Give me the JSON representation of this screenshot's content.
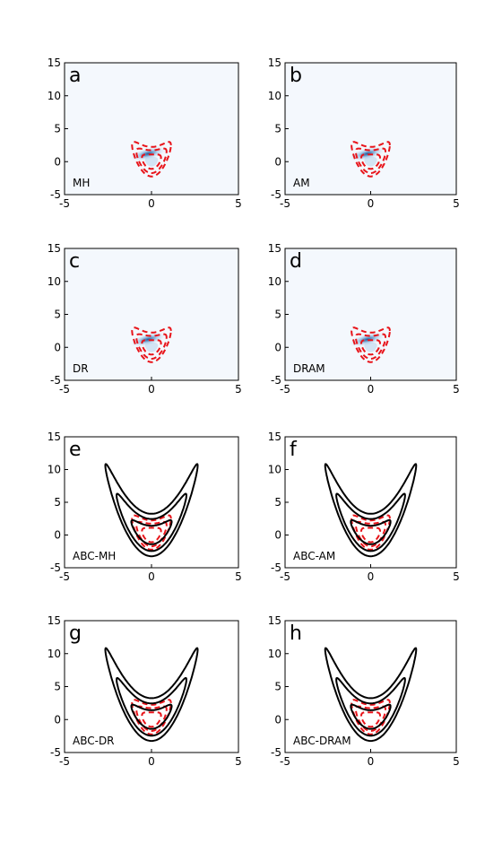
{
  "figure": {
    "background": "#ffffff"
  },
  "style": {
    "axis_color": "#000000",
    "posterior_color": "#e8141a",
    "contour_color": "#000000",
    "density_bg": "#f4f8fd",
    "density_mid": "#a9cbe9",
    "density_high": "#1f5f9f"
  },
  "chart_data": [
    {
      "type": "heatmap",
      "panel_letter": "a",
      "method_label": "MH",
      "xlim": [
        -5,
        5
      ],
      "ylim": [
        -5,
        15
      ],
      "xticks": [
        "-5",
        "0",
        "5"
      ],
      "yticks": [
        "-5",
        "0",
        "5",
        "10",
        "15"
      ],
      "target_contours_dashed": [
        [
          0.5,
          2,
          1.2
        ],
        [
          0.5,
          2,
          3.0
        ],
        [
          0.5,
          2,
          5.0
        ]
      ],
      "sample_density_peak": [
        -0.2,
        1.2
      ]
    },
    {
      "type": "heatmap",
      "panel_letter": "b",
      "method_label": "AM",
      "xlim": [
        -5,
        5
      ],
      "ylim": [
        -5,
        15
      ],
      "xticks": [
        "-5",
        "0",
        "5"
      ],
      "yticks": [
        "-5",
        "0",
        "5",
        "10",
        "15"
      ],
      "target_contours_dashed": [
        [
          0.5,
          2,
          1.2
        ],
        [
          0.5,
          2,
          3.0
        ],
        [
          0.5,
          2,
          5.0
        ]
      ],
      "sample_density_peak": [
        -0.2,
        1.2
      ]
    },
    {
      "type": "heatmap",
      "panel_letter": "c",
      "method_label": "DR",
      "xlim": [
        -5,
        5
      ],
      "ylim": [
        -5,
        15
      ],
      "xticks": [
        "-5",
        "0",
        "5"
      ],
      "yticks": [
        "-5",
        "0",
        "5",
        "10",
        "15"
      ],
      "target_contours_dashed": [
        [
          0.5,
          2,
          1.2
        ],
        [
          0.5,
          2,
          3.0
        ],
        [
          0.5,
          2,
          5.0
        ]
      ],
      "sample_density_peak": [
        -0.2,
        1.2
      ]
    },
    {
      "type": "heatmap",
      "panel_letter": "d",
      "method_label": "DRAM",
      "xlim": [
        -5,
        5
      ],
      "ylim": [
        -5,
        15
      ],
      "xticks": [
        "-5",
        "0",
        "5"
      ],
      "yticks": [
        "-5",
        "0",
        "5",
        "10",
        "15"
      ],
      "target_contours_dashed": [
        [
          0.5,
          2,
          1.2
        ],
        [
          0.5,
          2,
          3.0
        ],
        [
          0.5,
          2,
          5.0
        ]
      ],
      "sample_density_peak": [
        -0.2,
        1.2
      ]
    },
    {
      "type": "line",
      "panel_letter": "e",
      "method_label": "ABC-MH",
      "xlim": [
        -5,
        5
      ],
      "ylim": [
        -5,
        15
      ],
      "xticks": [
        "-5",
        "0",
        "5"
      ],
      "yticks": [
        "-5",
        "0",
        "5",
        "10",
        "15"
      ],
      "target_contours_dashed": [
        [
          0.5,
          2,
          1.2
        ],
        [
          0.5,
          2,
          3.0
        ],
        [
          0.5,
          2,
          5.0
        ]
      ],
      "abc_contours_solid": [
        [
          0.82,
          1.5,
          2.0
        ],
        [
          0.82,
          1.5,
          6.0
        ],
        [
          0.82,
          1.5,
          10.5
        ]
      ]
    },
    {
      "type": "line",
      "panel_letter": "f",
      "method_label": "ABC-AM",
      "xlim": [
        -5,
        5
      ],
      "ylim": [
        -5,
        15
      ],
      "xticks": [
        "-5",
        "0",
        "5"
      ],
      "yticks": [
        "-5",
        "0",
        "5",
        "10",
        "15"
      ],
      "target_contours_dashed": [
        [
          0.5,
          2,
          1.2
        ],
        [
          0.5,
          2,
          3.0
        ],
        [
          0.5,
          2,
          5.0
        ]
      ],
      "abc_contours_solid": [
        [
          0.82,
          1.5,
          2.0
        ],
        [
          0.82,
          1.5,
          6.0
        ],
        [
          0.82,
          1.5,
          10.5
        ]
      ]
    },
    {
      "type": "line",
      "panel_letter": "g",
      "method_label": "ABC-DR",
      "xlim": [
        -5,
        5
      ],
      "ylim": [
        -5,
        15
      ],
      "xticks": [
        "-5",
        "0",
        "5"
      ],
      "yticks": [
        "-5",
        "0",
        "5",
        "10",
        "15"
      ],
      "target_contours_dashed": [
        [
          0.5,
          2,
          1.2
        ],
        [
          0.5,
          2,
          3.0
        ],
        [
          0.5,
          2,
          5.0
        ]
      ],
      "abc_contours_solid": [
        [
          0.82,
          1.5,
          2.0
        ],
        [
          0.82,
          1.5,
          6.0
        ],
        [
          0.82,
          1.5,
          10.5
        ]
      ]
    },
    {
      "type": "line",
      "panel_letter": "h",
      "method_label": "ABC-DRAM",
      "xlim": [
        -5,
        5
      ],
      "ylim": [
        -5,
        15
      ],
      "xticks": [
        "-5",
        "0",
        "5"
      ],
      "yticks": [
        "-5",
        "0",
        "5",
        "10",
        "15"
      ],
      "target_contours_dashed": [
        [
          0.5,
          2,
          1.2
        ],
        [
          0.5,
          2,
          3.0
        ],
        [
          0.5,
          2,
          5.0
        ]
      ],
      "abc_contours_solid": [
        [
          0.82,
          1.5,
          2.0
        ],
        [
          0.82,
          1.5,
          6.0
        ],
        [
          0.82,
          1.5,
          10.5
        ]
      ]
    }
  ]
}
